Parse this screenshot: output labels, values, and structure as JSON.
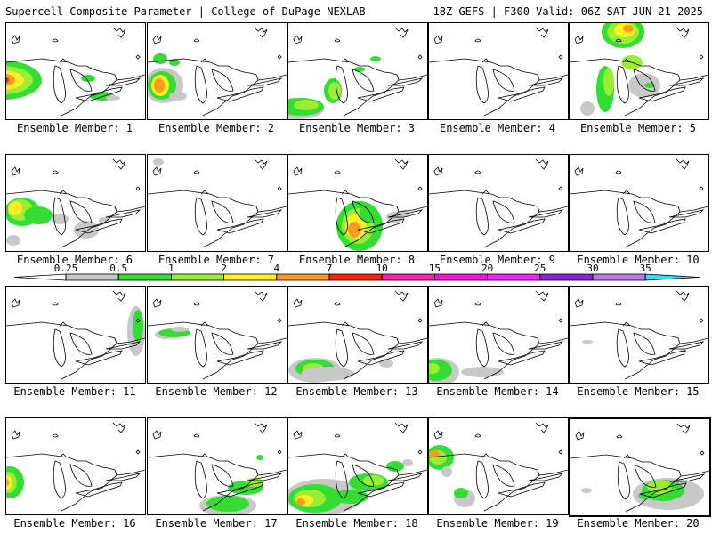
{
  "header": {
    "title": "Supercell Composite Parameter | College of DuPage NEXLAB",
    "valid": "18Z GEFS | F300 Valid: 06Z SAT JUN 21 2025"
  },
  "legend": {
    "ticks": [
      "0.25",
      "0.5",
      "1",
      "2",
      "4",
      "7",
      "10",
      "15",
      "20",
      "25",
      "30",
      "35"
    ],
    "colors": [
      "#c8c8c8",
      "#33dd33",
      "#99ee33",
      "#ffee22",
      "#ff9922",
      "#ff2200",
      "#ff22aa",
      "#ff11dd",
      "#ee22ff",
      "#8822dd",
      "#bb77ee",
      "#33ddff"
    ]
  },
  "panels": [
    {
      "label": "Ensemble Member: 1"
    },
    {
      "label": "Ensemble Member: 2"
    },
    {
      "label": "Ensemble Member: 3"
    },
    {
      "label": "Ensemble Member: 4"
    },
    {
      "label": "Ensemble Member: 5"
    },
    {
      "label": "Ensemble Member: 6"
    },
    {
      "label": "Ensemble Member: 7"
    },
    {
      "label": "Ensemble Member: 8"
    },
    {
      "label": "Ensemble Member: 9"
    },
    {
      "label": "Ensemble Member: 10"
    },
    {
      "label": "Ensemble Member: 11"
    },
    {
      "label": "Ensemble Member: 12"
    },
    {
      "label": "Ensemble Member: 13"
    },
    {
      "label": "Ensemble Member: 14"
    },
    {
      "label": "Ensemble Member: 15"
    },
    {
      "label": "Ensemble Member: 16"
    },
    {
      "label": "Ensemble Member: 17"
    },
    {
      "label": "Ensemble Member: 18"
    },
    {
      "label": "Ensemble Member: 19"
    },
    {
      "label": "Ensemble Member: 20"
    }
  ]
}
